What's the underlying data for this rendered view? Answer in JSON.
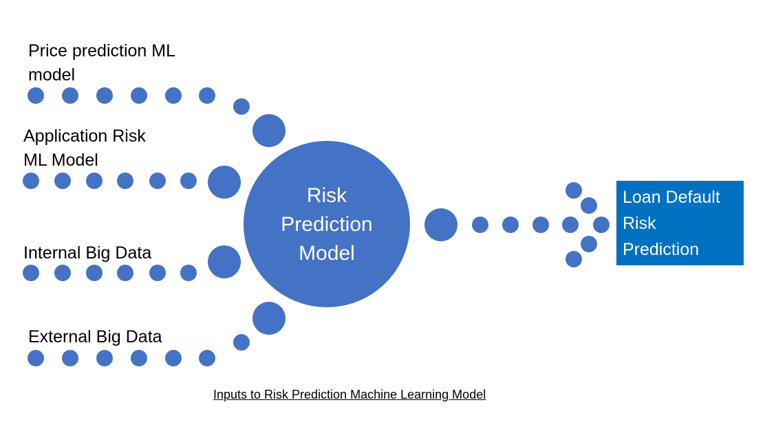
{
  "inputs": [
    {
      "label": "Price prediction ML\nmodel"
    },
    {
      "label": "Application Risk\nML Model"
    },
    {
      "label": "Internal Big Data"
    },
    {
      "label": "External Big Data"
    }
  ],
  "center": {
    "label": "Risk\nPrediction\nModel"
  },
  "output": {
    "label": "Loan Default\nRisk\nPrediction"
  },
  "caption": "Inputs to Risk Prediction Machine Learning Model",
  "colors": {
    "dot": "#4472c4",
    "center_circle": "#4472c4",
    "output_box": "#0070c0"
  }
}
